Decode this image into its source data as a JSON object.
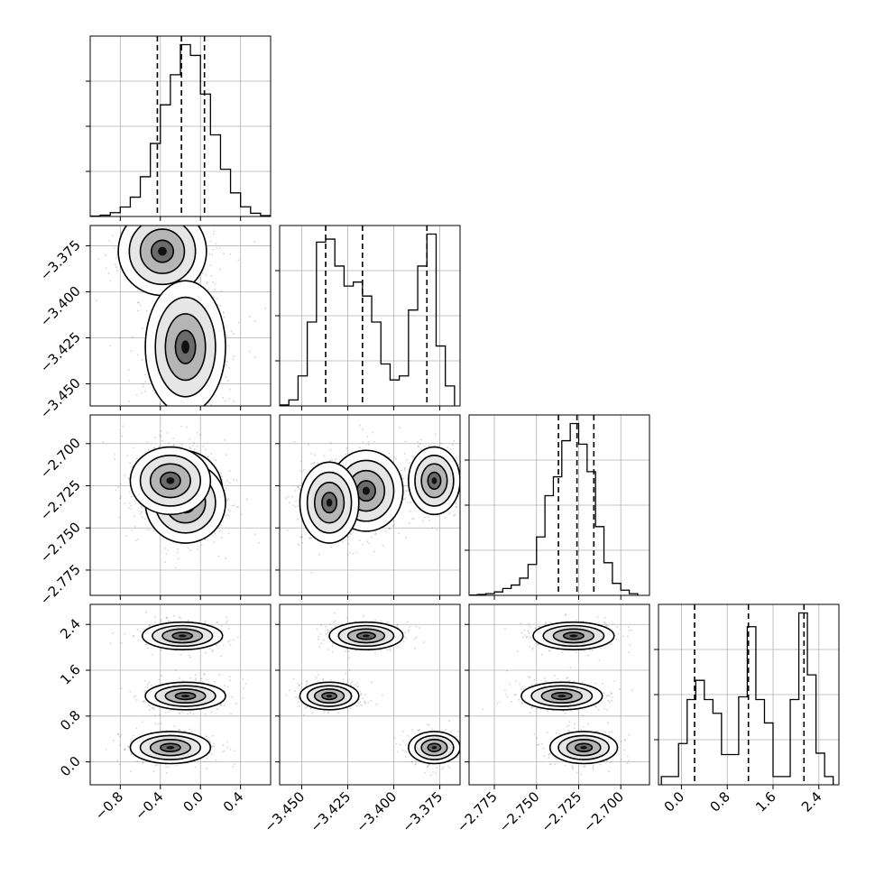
{
  "chart_data": {
    "type": "corner",
    "grid": true,
    "parameters": [
      {
        "id": "p0",
        "range": [
          -1.1,
          0.7
        ],
        "ticks": [
          -0.8,
          -0.4,
          0.0,
          0.4
        ],
        "tick_labels": [
          "−0.8",
          "−0.4",
          "0.0",
          "0.4"
        ],
        "quantiles": [
          -0.43,
          -0.19,
          0.04
        ],
        "histogram": {
          "bin_edges": [
            -1.1,
            -1.0,
            -0.9,
            -0.8,
            -0.7,
            -0.6,
            -0.5,
            -0.4,
            -0.3,
            -0.2,
            -0.1,
            0.0,
            0.1,
            0.2,
            0.3,
            0.4,
            0.5,
            0.6,
            0.7
          ],
          "counts": [
            2,
            6,
            18,
            44,
            90,
            185,
            340,
            520,
            660,
            800,
            750,
            570,
            380,
            220,
            110,
            45,
            15,
            4
          ]
        },
        "modes": [
          {
            "center": [
              -0.38,
              -3.378
            ],
            "sigma": [
              0.22,
              0.012
            ],
            "weight": 0.35
          },
          {
            "center": [
              -0.15,
              -3.43
            ],
            "sigma": [
              0.2,
              0.018
            ],
            "weight": 0.65
          }
        ]
      },
      {
        "id": "p1",
        "range": [
          -3.462,
          -3.364
        ],
        "ticks": [
          -3.45,
          -3.425,
          -3.4,
          -3.375
        ],
        "tick_labels": [
          "−3.450",
          "−3.425",
          "−3.400",
          "−3.375"
        ],
        "quantiles": [
          -3.437,
          -3.417,
          -3.382
        ],
        "histogram": {
          "bin_edges": [
            -3.462,
            -3.457,
            -3.452,
            -3.447,
            -3.442,
            -3.437,
            -3.432,
            -3.427,
            -3.422,
            -3.417,
            -3.412,
            -3.407,
            -3.402,
            -3.397,
            -3.392,
            -3.387,
            -3.382,
            -3.377,
            -3.372,
            -3.367
          ],
          "counts": [
            5,
            30,
            150,
            420,
            820,
            835,
            700,
            600,
            620,
            550,
            420,
            210,
            130,
            150,
            480,
            700,
            860,
            300,
            100
          ]
        }
      },
      {
        "id": "p2",
        "range": [
          -2.79,
          -2.683
        ],
        "ticks": [
          -2.775,
          -2.75,
          -2.725,
          -2.7
        ],
        "tick_labels": [
          "−2.775",
          "−2.750",
          "−2.725",
          "−2.700"
        ],
        "quantiles": [
          -2.737,
          -2.726,
          -2.716
        ],
        "histogram": {
          "bin_edges": [
            -2.79,
            -2.785,
            -2.78,
            -2.775,
            -2.77,
            -2.765,
            -2.76,
            -2.755,
            -2.75,
            -2.745,
            -2.74,
            -2.735,
            -2.73,
            -2.725,
            -2.72,
            -2.715,
            -2.71,
            -2.705,
            -2.7,
            -2.695,
            -2.69
          ],
          "counts": [
            2,
            5,
            10,
            20,
            40,
            60,
            100,
            180,
            340,
            580,
            690,
            900,
            1000,
            880,
            720,
            400,
            190,
            70,
            30,
            10
          ]
        }
      },
      {
        "id": "p3",
        "range": [
          -0.4,
          2.75
        ],
        "ticks": [
          0.0,
          0.8,
          1.6,
          2.4
        ],
        "tick_labels": [
          "0.0",
          "0.8",
          "1.6",
          "2.4"
        ],
        "quantiles": [
          0.23,
          1.17,
          2.14
        ],
        "histogram": {
          "bin_edges": [
            -0.35,
            -0.2,
            -0.05,
            0.1,
            0.25,
            0.4,
            0.55,
            0.7,
            0.85,
            1.0,
            1.15,
            1.3,
            1.45,
            1.6,
            1.75,
            1.9,
            2.05,
            2.2,
            2.35,
            2.5,
            2.65
          ],
          "counts": [
            60,
            60,
            300,
            620,
            760,
            620,
            520,
            220,
            220,
            640,
            1150,
            620,
            450,
            60,
            60,
            620,
            1250,
            800,
            230,
            60
          ]
        }
      }
    ],
    "modes_3": [
      {
        "center": [
          -0.18,
          -3.415,
          -2.728,
          2.2
        ],
        "sigma": [
          0.2,
          0.01,
          0.012,
          0.12
        ],
        "weight": 0.34
      },
      {
        "center": [
          -0.15,
          -3.435,
          -2.735,
          1.15
        ],
        "sigma": [
          0.2,
          0.008,
          0.012,
          0.12
        ],
        "weight": 0.33
      },
      {
        "center": [
          -0.3,
          -3.378,
          -2.722,
          0.25
        ],
        "sigma": [
          0.2,
          0.007,
          0.01,
          0.14
        ],
        "weight": 0.33
      }
    ]
  }
}
